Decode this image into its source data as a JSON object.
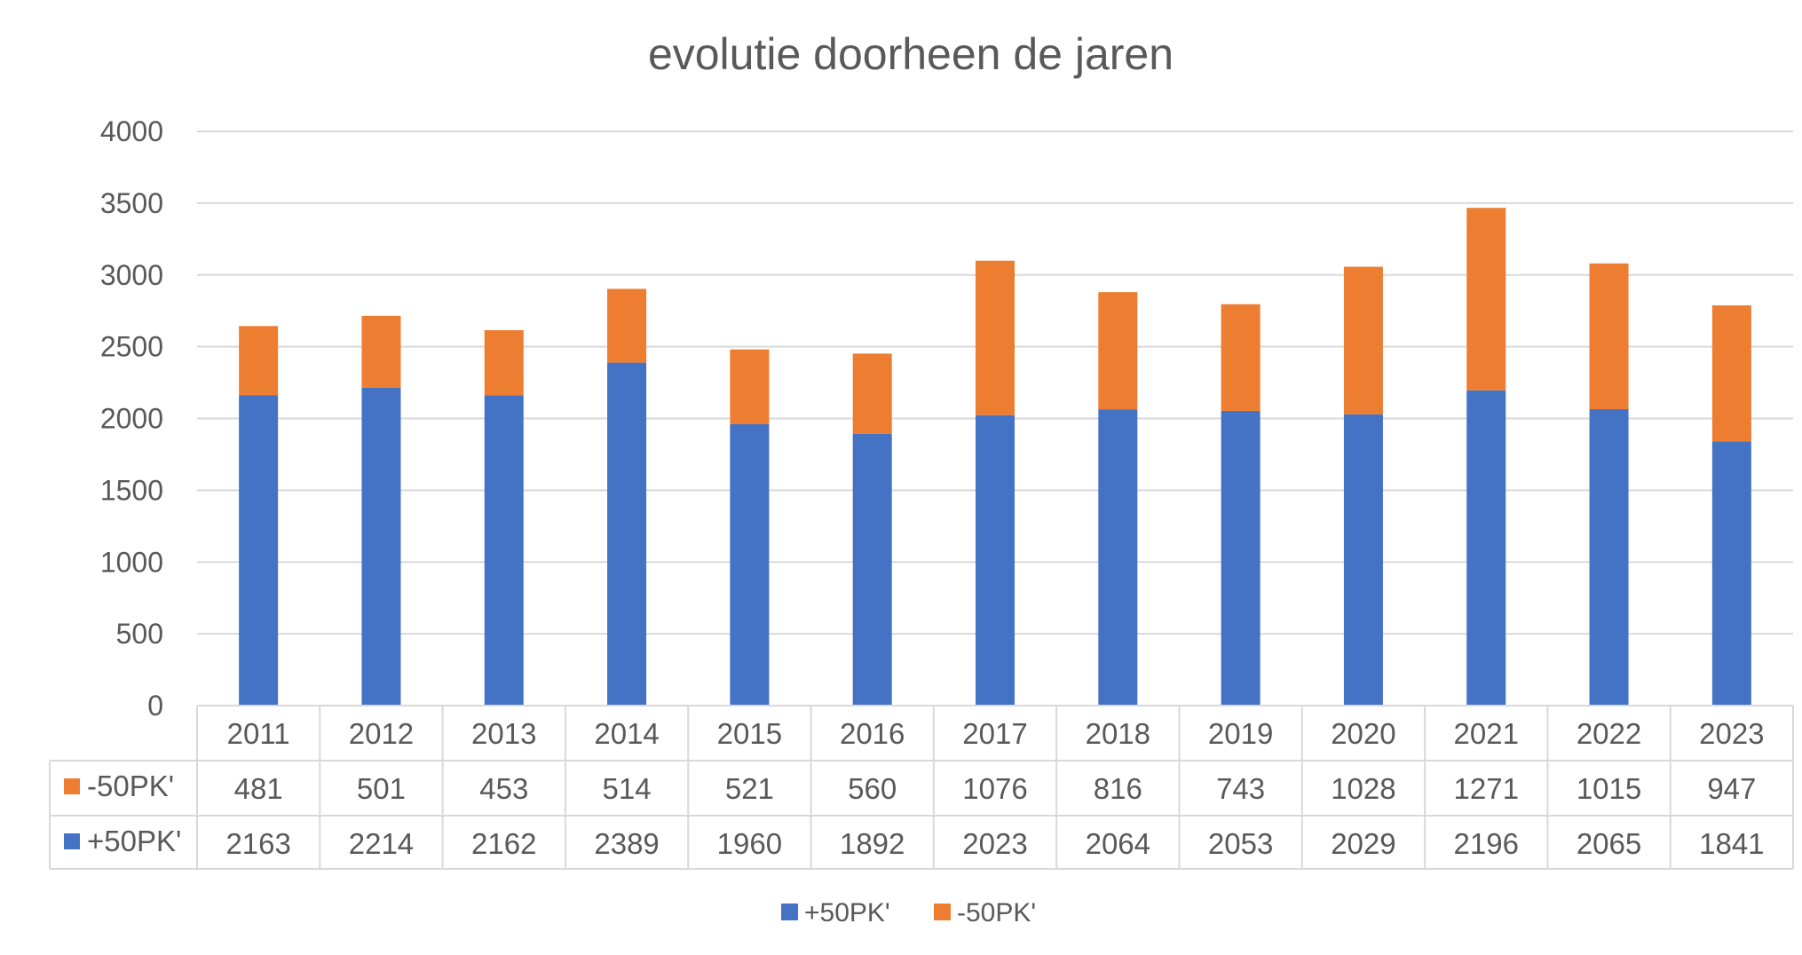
{
  "chart_data": {
    "type": "bar",
    "stacked": true,
    "title": "evolutie doorheen de jaren",
    "xlabel": "",
    "ylabel": "",
    "ylim": [
      0,
      4000
    ],
    "y_ticks": [
      0,
      500,
      1000,
      1500,
      2000,
      2500,
      3000,
      3500,
      4000
    ],
    "grid": true,
    "legend_position": "bottom",
    "data_table": true,
    "categories": [
      "2011",
      "2012",
      "2013",
      "2014",
      "2015",
      "2016",
      "2017",
      "2018",
      "2019",
      "2020",
      "2021",
      "2022",
      "2023"
    ],
    "series": [
      {
        "name": "+50PK'",
        "color": "#4472c4",
        "values": [
          2163,
          2214,
          2162,
          2389,
          1960,
          1892,
          2023,
          2064,
          2053,
          2029,
          2196,
          2065,
          1841
        ]
      },
      {
        "name": "-50PK'",
        "color": "#ed7d31",
        "values": [
          481,
          501,
          453,
          514,
          521,
          560,
          1076,
          816,
          743,
          1028,
          1271,
          1015,
          947
        ]
      }
    ],
    "table_row_order": [
      "-50PK'",
      "+50PK'"
    ],
    "legend_order": [
      "+50PK'",
      "-50PK'"
    ]
  }
}
